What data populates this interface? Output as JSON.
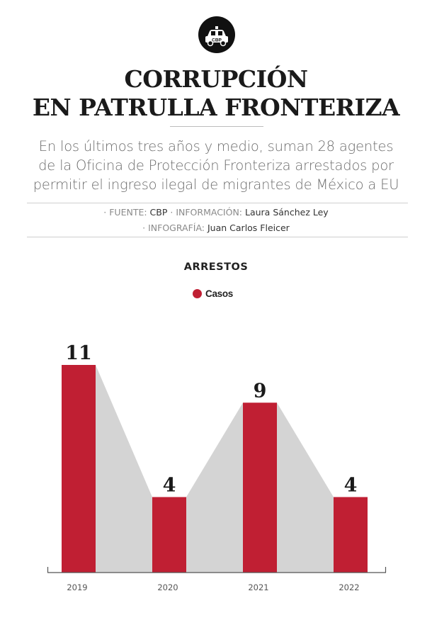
{
  "header": {
    "logo_text": "CBP",
    "title_line1": "CORRUPCIÓN",
    "title_line2": "EN PATRULLA FRONTERIZA",
    "subtitle_line1": "En los últimos tres años y medio, suman 28 agentes",
    "subtitle_line2": "de la Oficina de Protección Fronteriza arrestados por",
    "subtitle_line3": "permitir el ingreso ilegal de migrantes de México a EU"
  },
  "credits": {
    "fuente_label": "· FUENTE:",
    "fuente_value": "CBP",
    "informacion_label": "· INFORMACIÓN:",
    "informacion_value": "Laura Sánchez Ley",
    "infografia_label": "· INFOGRAFÍA:",
    "infografia_value": "Juan Carlos Fleicer"
  },
  "colors": {
    "bar": "#c01f33",
    "area": "#d4d4d4",
    "axis": "#555555"
  },
  "chart_data": {
    "type": "bar",
    "title": "ARRESTOS",
    "legend": [
      {
        "name": "Casos",
        "color": "#c01f33"
      }
    ],
    "categories": [
      "2019",
      "2020",
      "2021",
      "2022"
    ],
    "series": [
      {
        "name": "Casos",
        "values": [
          11,
          4,
          9,
          4
        ]
      }
    ],
    "data_labels": [
      "11",
      "4",
      "9",
      "4"
    ],
    "ylim": [
      0,
      11
    ],
    "xlabel": "",
    "ylabel": "",
    "grid": false
  }
}
